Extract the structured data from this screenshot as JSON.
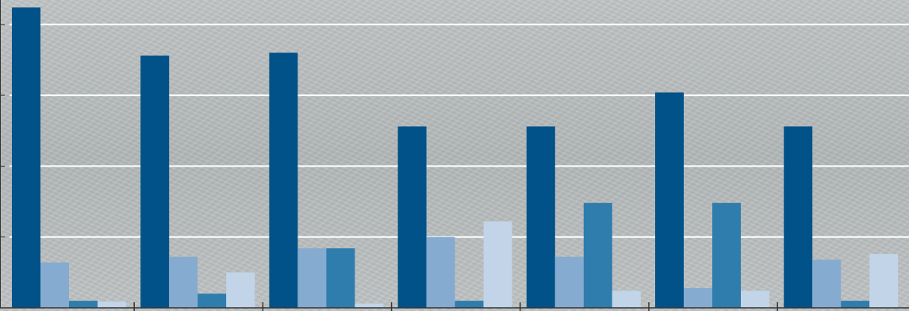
{
  "chart_data": {
    "type": "bar",
    "title": "",
    "xlabel": "",
    "ylabel": "",
    "categories": [
      "",
      "",
      "",
      "",
      "",
      "",
      ""
    ],
    "series": [
      {
        "color": "#005288",
        "values": [
          106,
          89,
          90,
          64,
          64,
          76,
          64
        ]
      },
      {
        "color": "#86abd1",
        "values": [
          16,
          18,
          21,
          25,
          18,
          7,
          17
        ]
      },
      {
        "color": "#2e7dad",
        "values": [
          2.5,
          5,
          21,
          2.5,
          37,
          37,
          2.5
        ]
      },
      {
        "color": "#c2d4e7",
        "values": [
          2.2,
          12.5,
          1.5,
          30.5,
          6,
          6,
          19
        ]
      }
    ],
    "ylim": [
      0,
      110
    ],
    "ytick_step": 25,
    "grid": true,
    "legend": "none"
  }
}
